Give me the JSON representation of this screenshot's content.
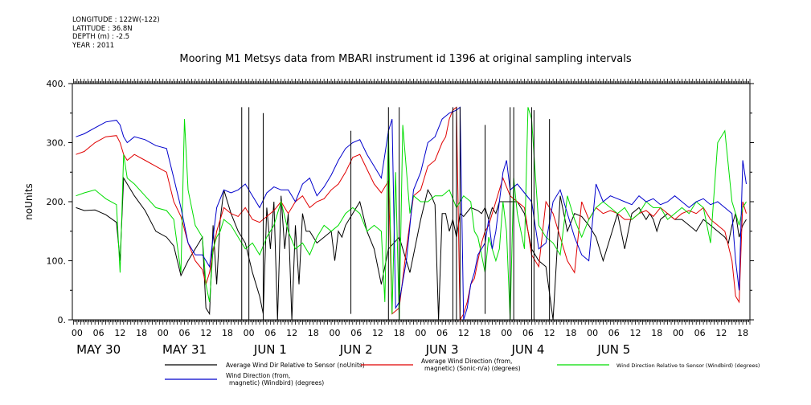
{
  "header": {
    "longitude": "LONGITUDE : 122W(-122)",
    "latitude": "LATITUDE : 36.8N",
    "depth": "DEPTH (m) : -2.5",
    "year": "YEAR : 2011"
  },
  "chart_data": {
    "type": "line",
    "title": "Mooring M1 Metsys data from MBARI instrument id 1396 at original sampling intervals",
    "ylabel": "noUnits",
    "xlabel": "",
    "ylim": [
      0,
      400
    ],
    "xlim": [
      -20,
      1116
    ],
    "x_units": "hours since 2011-05-30 00:00",
    "y_ticks": [
      "0.",
      "100.",
      "200.",
      "300.",
      "400."
    ],
    "hour_tick_labels": [
      "00",
      "06",
      "12",
      "18",
      "00",
      "06",
      "12",
      "18",
      "00",
      "06",
      "12",
      "18",
      "00",
      "06",
      "12",
      "18",
      "00",
      "06",
      "12",
      "18",
      "00",
      "06",
      "12",
      "18",
      "00",
      "06",
      "12",
      "18",
      "00",
      "06",
      "12",
      "18"
    ],
    "day_labels": [
      "MAY 30",
      "MAY 31",
      "JUN  1",
      "JUN  2",
      "JUN  3",
      "JUN  4",
      "JUN  5"
    ],
    "grid": false,
    "legend_position": "bottom",
    "series": [
      {
        "name": "Average Wind Dir Relative to Sensor (noUnits)",
        "color": "#000000",
        "x": [
          -14,
          0,
          18,
          36,
          54,
          60,
          66,
          72,
          84,
          102,
          120,
          138,
          150,
          162,
          174,
          186,
          198,
          204,
          210,
          216,
          222,
          228,
          234,
          246,
          258,
          270,
          282,
          294,
          300,
          306,
          312,
          318,
          324,
          330,
          336,
          342,
          348,
          354,
          360,
          366,
          372,
          378,
          390,
          402,
          414,
          420,
          426,
          432,
          438,
          450,
          462,
          474,
          486,
          498,
          510,
          528,
          546,
          564,
          576,
          582,
          588,
          594,
          600,
          606,
          612,
          618,
          624,
          630,
          636,
          648,
          660,
          666,
          672,
          678,
          684,
          690,
          696,
          702,
          714,
          726,
          738,
          750,
          762,
          774,
          786,
          798,
          810,
          822,
          834,
          846,
          858,
          870,
          882,
          894,
          906,
          918,
          930,
          936,
          942,
          948,
          954,
          960,
          966,
          978,
          990,
          1002,
          1014,
          1026,
          1038,
          1050,
          1062,
          1074,
          1080,
          1086,
          1092,
          1098,
          1104,
          1110
        ],
        "y": [
          190,
          185,
          186,
          178,
          165,
          100,
          240,
          230,
          210,
          185,
          150,
          140,
          125,
          75,
          100,
          120,
          140,
          20,
          10,
          160,
          60,
          170,
          220,
          180,
          150,
          130,
          80,
          40,
          10,
          190,
          120,
          200,
          0,
          210,
          120,
          180,
          0,
          160,
          60,
          180,
          150,
          150,
          130,
          140,
          150,
          100,
          150,
          140,
          160,
          180,
          200,
          150,
          120,
          60,
          120,
          140,
          80,
          170,
          220,
          210,
          195,
          0,
          180,
          180,
          150,
          170,
          140,
          180,
          175,
          190,
          185,
          180,
          190,
          170,
          190,
          180,
          200,
          200,
          200,
          200,
          180,
          120,
          100,
          90,
          0,
          210,
          150,
          180,
          175,
          160,
          140,
          100,
          140,
          180,
          120,
          180,
          190,
          180,
          170,
          180,
          170,
          150,
          170,
          180,
          170,
          170,
          160,
          150,
          170,
          160,
          150,
          140,
          130,
          160,
          180,
          140,
          160,
          170
        ]
      },
      {
        "name": "Average Wind Direction (from, magnetic) (Sonic-n/a) (degrees)",
        "color": "#e00000",
        "x": [
          -14,
          0,
          18,
          36,
          54,
          60,
          66,
          72,
          84,
          102,
          120,
          138,
          150,
          162,
          174,
          186,
          198,
          204,
          210,
          222,
          234,
          246,
          258,
          270,
          282,
          294,
          306,
          318,
          330,
          342,
          354,
          366,
          378,
          390,
          402,
          414,
          426,
          438,
          450,
          462,
          474,
          486,
          498,
          510,
          516,
          528,
          540,
          552,
          564,
          576,
          588,
          600,
          606,
          612,
          618,
          624,
          630,
          636,
          642,
          648,
          654,
          660,
          666,
          672,
          678,
          684,
          690,
          696,
          702,
          708,
          714,
          726,
          738,
          750,
          762,
          774,
          786,
          798,
          810,
          822,
          834,
          846,
          858,
          870,
          882,
          894,
          906,
          918,
          930,
          942,
          954,
          966,
          978,
          990,
          1002,
          1014,
          1026,
          1038,
          1050,
          1062,
          1074,
          1086,
          1092,
          1098,
          1104,
          1110
        ],
        "y": [
          280,
          285,
          300,
          310,
          312,
          300,
          280,
          270,
          280,
          270,
          260,
          250,
          200,
          175,
          130,
          100,
          85,
          60,
          80,
          150,
          190,
          180,
          175,
          190,
          170,
          165,
          175,
          185,
          200,
          180,
          200,
          210,
          190,
          200,
          205,
          220,
          230,
          250,
          275,
          280,
          255,
          230,
          215,
          235,
          10,
          20,
          120,
          210,
          220,
          260,
          270,
          300,
          310,
          340,
          355,
          360,
          0,
          10,
          30,
          60,
          70,
          100,
          130,
          150,
          160,
          180,
          200,
          220,
          240,
          225,
          210,
          200,
          190,
          110,
          90,
          200,
          180,
          140,
          100,
          80,
          200,
          170,
          190,
          180,
          185,
          180,
          170,
          170,
          180,
          185,
          175,
          190,
          180,
          170,
          180,
          185,
          180,
          190,
          170,
          160,
          150,
          100,
          40,
          30,
          200,
          180
        ]
      },
      {
        "name": "Wind Direction Relative to Sensor (Windbird) (degrees)",
        "color": "#00dd00",
        "x": [
          -14,
          0,
          18,
          36,
          54,
          60,
          66,
          72,
          84,
          102,
          120,
          138,
          150,
          162,
          168,
          174,
          186,
          198,
          204,
          210,
          216,
          222,
          228,
          234,
          246,
          258,
          270,
          282,
          294,
          306,
          318,
          330,
          342,
          354,
          366,
          378,
          390,
          402,
          414,
          426,
          438,
          450,
          462,
          474,
          486,
          498,
          504,
          510,
          516,
          522,
          528,
          534,
          546,
          552,
          564,
          576,
          588,
          600,
          612,
          624,
          636,
          648,
          654,
          660,
          666,
          672,
          678,
          684,
          690,
          696,
          702,
          708,
          714,
          720,
          726,
          738,
          744,
          750,
          762,
          774,
          786,
          798,
          810,
          822,
          834,
          846,
          858,
          870,
          882,
          894,
          906,
          918,
          930,
          942,
          954,
          966,
          978,
          990,
          1002,
          1014,
          1026,
          1038,
          1050,
          1062,
          1074,
          1086,
          1092,
          1098,
          1104,
          1110
        ],
        "y": [
          210,
          215,
          220,
          205,
          195,
          80,
          280,
          240,
          230,
          210,
          190,
          185,
          170,
          80,
          340,
          220,
          160,
          140,
          60,
          30,
          120,
          140,
          150,
          170,
          160,
          140,
          120,
          130,
          110,
          140,
          160,
          200,
          150,
          120,
          130,
          110,
          140,
          160,
          150,
          160,
          180,
          190,
          180,
          150,
          160,
          150,
          30,
          320,
          10,
          250,
          0,
          330,
          180,
          210,
          200,
          200,
          210,
          210,
          220,
          190,
          210,
          200,
          150,
          140,
          110,
          80,
          140,
          120,
          100,
          120,
          200,
          150,
          0,
          240,
          180,
          120,
          360,
          340,
          160,
          140,
          130,
          110,
          210,
          170,
          140,
          170,
          190,
          200,
          190,
          180,
          190,
          170,
          180,
          200,
          190,
          190,
          170,
          180,
          190,
          180,
          200,
          190,
          130,
          300,
          320,
          200,
          180,
          160,
          190,
          200
        ]
      },
      {
        "name": "Wind Direction (from, magnetic) (Windbird) (degrees)",
        "color": "#0000cc",
        "x": [
          -14,
          0,
          18,
          36,
          54,
          60,
          66,
          72,
          84,
          102,
          120,
          138,
          150,
          162,
          174,
          186,
          198,
          210,
          222,
          234,
          246,
          258,
          270,
          282,
          294,
          306,
          318,
          330,
          342,
          354,
          366,
          378,
          390,
          402,
          414,
          426,
          438,
          450,
          462,
          474,
          486,
          498,
          510,
          516,
          522,
          528,
          540,
          552,
          564,
          576,
          588,
          600,
          612,
          624,
          630,
          636,
          642,
          648,
          654,
          660,
          666,
          672,
          678,
          684,
          690,
          696,
          702,
          708,
          714,
          726,
          738,
          750,
          762,
          774,
          786,
          798,
          810,
          822,
          834,
          846,
          858,
          870,
          882,
          894,
          906,
          918,
          930,
          942,
          954,
          966,
          978,
          990,
          1002,
          1014,
          1026,
          1038,
          1050,
          1062,
          1074,
          1086,
          1092,
          1098,
          1104,
          1110
        ],
        "y": [
          310,
          315,
          325,
          335,
          338,
          330,
          310,
          300,
          310,
          305,
          295,
          290,
          240,
          190,
          130,
          110,
          110,
          90,
          190,
          220,
          215,
          220,
          230,
          210,
          190,
          215,
          225,
          220,
          220,
          200,
          230,
          240,
          210,
          225,
          245,
          270,
          290,
          300,
          305,
          280,
          260,
          240,
          320,
          340,
          20,
          30,
          100,
          220,
          250,
          300,
          310,
          340,
          350,
          355,
          360,
          0,
          20,
          60,
          80,
          110,
          120,
          130,
          170,
          120,
          150,
          200,
          250,
          270,
          220,
          230,
          215,
          200,
          120,
          130,
          200,
          220,
          180,
          140,
          110,
          100,
          230,
          200,
          210,
          205,
          200,
          195,
          210,
          200,
          205,
          195,
          200,
          210,
          200,
          190,
          200,
          205,
          195,
          200,
          190,
          180,
          100,
          50,
          270,
          230
        ]
      }
    ],
    "spikes": [
      {
        "x": 264,
        "y": [
          0,
          360
        ]
      },
      {
        "x": 276,
        "y": [
          0,
          360
        ]
      },
      {
        "x": 300,
        "y": [
          0,
          350
        ]
      },
      {
        "x": 447,
        "y": [
          10,
          320
        ]
      },
      {
        "x": 510,
        "y": [
          0,
          360
        ]
      },
      {
        "x": 528,
        "y": [
          0,
          360
        ]
      },
      {
        "x": 618,
        "y": [
          0,
          360
        ]
      },
      {
        "x": 624,
        "y": [
          0,
          360
        ]
      },
      {
        "x": 630,
        "y": [
          0,
          360
        ]
      },
      {
        "x": 672,
        "y": [
          10,
          330
        ]
      },
      {
        "x": 714,
        "y": [
          0,
          360
        ]
      },
      {
        "x": 720,
        "y": [
          0,
          360
        ]
      },
      {
        "x": 750,
        "y": [
          0,
          360
        ]
      },
      {
        "x": 754,
        "y": [
          0,
          355
        ]
      },
      {
        "x": 780,
        "y": [
          0,
          340
        ]
      }
    ]
  }
}
